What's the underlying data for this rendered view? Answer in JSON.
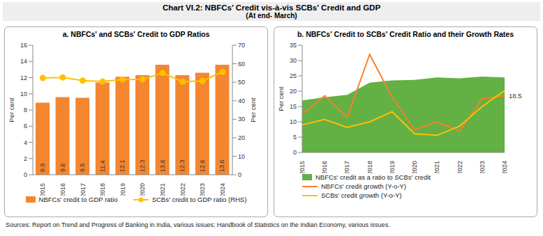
{
  "title": "Chart VI.2: NBFCs' Credit vis-à-vis SCBs' Credit and GDP",
  "subtitle": "(At end- March)",
  "source": "Sources: Report on Trend and Progress of Banking in India, various issues; Handbook of Statistics on the Indian Economy, various issues.",
  "chart_data": [
    {
      "type": "bar",
      "title": "a. NBFCs' and SCBs' Credit to GDP Ratios",
      "categories": [
        "2015",
        "2016",
        "2017",
        "2018",
        "2019",
        "2020",
        "2021",
        "2022",
        "2023",
        "2024"
      ],
      "series": [
        {
          "name": "NBFCs' credit to GDP ratio",
          "type": "bar",
          "color": "#f4862f",
          "values": [
            8.9,
            9.6,
            9.5,
            11.4,
            12.1,
            12.3,
            13.6,
            12.3,
            12.6,
            13.6
          ]
        },
        {
          "name": "SCBs' credit to GDP ratio (RHS)",
          "type": "line",
          "color": "#ffc000",
          "marker": "circle",
          "axis": "y2",
          "values": [
            52.3,
            52.6,
            50.9,
            50.4,
            51.5,
            51.6,
            55.0,
            50.3,
            50.7,
            55.6
          ]
        }
      ],
      "data_labels": true,
      "ylabel": "Per cent",
      "y2label": "Per cent",
      "ylim": [
        0,
        16
      ],
      "yticks": [
        0,
        2,
        4,
        6,
        8,
        10,
        12,
        14,
        16
      ],
      "y2lim": [
        0,
        70
      ],
      "y2ticks": [
        0,
        10,
        20,
        30,
        40,
        50,
        60,
        70
      ],
      "grid": false,
      "legend": "bottom"
    },
    {
      "type": "area",
      "title": "b. NBFCs' Credit to SCBs' Credit Ratio and their Growth Rates",
      "categories": [
        "2015",
        "2016",
        "2017",
        "2018",
        "2019",
        "2020",
        "2021",
        "2022",
        "2023",
        "2024"
      ],
      "series": [
        {
          "name": "NBFCs' credit as a ratio to SCBs' credit",
          "type": "area",
          "color": "#63b044",
          "values": [
            17.0,
            18.0,
            18.8,
            22.8,
            23.5,
            23.7,
            24.5,
            24.2,
            24.8,
            24.5
          ]
        },
        {
          "name": "NBFCs' credit growth (Y-o-Y)",
          "type": "line",
          "color": "#f4812b",
          "values": [
            12.5,
            18.5,
            11.5,
            32.0,
            18.0,
            7.5,
            10.0,
            7.0,
            17.5,
            18.5
          ]
        },
        {
          "name": "SCBs' credit growth (Y-o-Y)",
          "type": "line",
          "color": "#ffc000",
          "values": [
            9.0,
            10.8,
            8.2,
            10.0,
            13.3,
            6.1,
            5.6,
            8.6,
            15.0,
            20.2
          ]
        }
      ],
      "ylabel": "Per cent",
      "ylim": [
        0,
        35
      ],
      "yticks": [
        0,
        5,
        10,
        15,
        20,
        25,
        30,
        35
      ],
      "grid": false,
      "legend": "bottom",
      "annotations": [
        {
          "text": "18.5",
          "x": "2024",
          "y": 18.5
        }
      ]
    }
  ]
}
